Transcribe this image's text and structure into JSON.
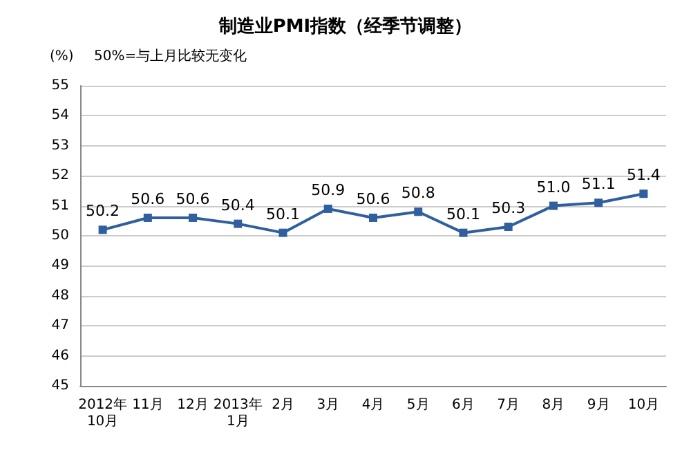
{
  "chart_data": {
    "type": "line",
    "title": "制造业PMI指数（经季节调整）",
    "ylabel": "(%)",
    "annotations": [
      "50%=与上月比较无变化"
    ],
    "categories": [
      "2012年\n10月",
      "11月",
      "12月",
      "2013年\n1月",
      "2月",
      "3月",
      "4月",
      "5月",
      "6月",
      "7月",
      "8月",
      "9月",
      "10月"
    ],
    "series": [
      {
        "color": "#2f5f9e",
        "values": [
          50.2,
          50.6,
          50.6,
          50.4,
          50.1,
          50.9,
          50.6,
          50.8,
          50.1,
          50.3,
          51.0,
          51.1,
          51.4
        ],
        "value_labels": [
          "50.2",
          "50.6",
          "50.6",
          "50.4",
          "50.1",
          "50.9",
          "50.6",
          "50.8",
          "50.1",
          "50.3",
          "51.0",
          "51.1",
          "51.4"
        ]
      }
    ],
    "ylim": [
      45,
      55
    ],
    "yticks": [
      45,
      46,
      47,
      48,
      49,
      50,
      51,
      52,
      53,
      54,
      55
    ],
    "grid": "y",
    "marker": "square",
    "line_style": "solid"
  }
}
